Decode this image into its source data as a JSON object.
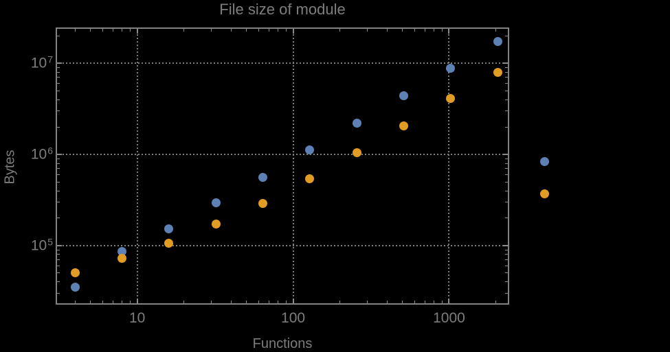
{
  "chart_data": {
    "type": "scatter",
    "title": "File size of module",
    "xlabel": "Functions",
    "ylabel": "Bytes",
    "x_scale": "log",
    "y_scale": "log",
    "xlim": [
      3.0,
      2430
    ],
    "ylim": [
      22500,
      24800000
    ],
    "grid": "dotted",
    "legend": "none",
    "background_color": "#000000",
    "frame_color": "#828282",
    "grid_color": "#7e7e7e",
    "text_color": "#7d7d7d",
    "x_ticks": [
      {
        "value": 10,
        "label": "10"
      },
      {
        "value": 100,
        "label": "100"
      },
      {
        "value": 1000,
        "label": "1000"
      }
    ],
    "y_ticks": [
      {
        "value": 100000,
        "base": "10",
        "exp": "5"
      },
      {
        "value": 1000000,
        "base": "10",
        "exp": "6"
      },
      {
        "value": 10000000,
        "base": "10",
        "exp": "7"
      }
    ],
    "x": [
      4,
      8,
      16,
      32,
      64,
      128,
      256,
      512,
      1024,
      2048,
      4096
    ],
    "series": [
      {
        "name": "blue",
        "color": "#5e81b5",
        "values": [
          35000,
          86000,
          154000,
          294000,
          560000,
          1130000,
          2210000,
          4420000,
          8810000,
          17300000,
          841000
        ]
      },
      {
        "name": "orange",
        "color": "#e19c24",
        "values": [
          50000,
          72000,
          107000,
          174000,
          290000,
          546000,
          1050000,
          2070000,
          4120000,
          7950000,
          367000
        ]
      }
    ]
  }
}
